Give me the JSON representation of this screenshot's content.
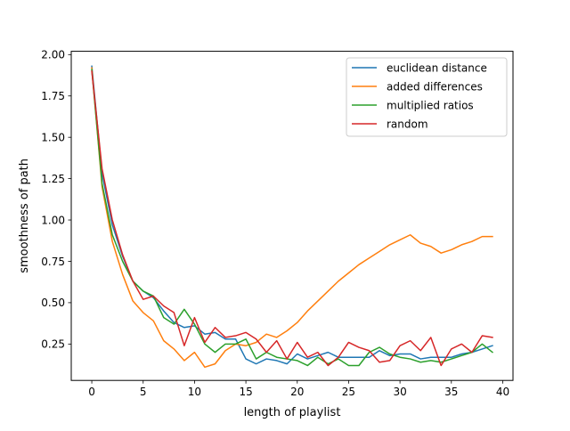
{
  "chart_data": {
    "type": "line",
    "title": "",
    "xlabel": "length of playlist",
    "ylabel": "smoothness of path",
    "xlim": [
      -2,
      41
    ],
    "ylim": [
      0.03,
      2.02
    ],
    "xticks": [
      0,
      5,
      10,
      15,
      20,
      25,
      30,
      35,
      40
    ],
    "xtick_labels": [
      "0",
      "5",
      "10",
      "15",
      "20",
      "25",
      "30",
      "35",
      "40"
    ],
    "yticks": [
      0.25,
      0.5,
      0.75,
      1.0,
      1.25,
      1.5,
      1.75,
      2.0
    ],
    "ytick_labels": [
      "0.25",
      "0.50",
      "0.75",
      "1.00",
      "1.25",
      "1.50",
      "1.75",
      "2.00"
    ],
    "grid": false,
    "legend_position": "top-right",
    "x": [
      0,
      1,
      2,
      3,
      4,
      5,
      6,
      7,
      8,
      9,
      10,
      11,
      12,
      13,
      14,
      15,
      16,
      17,
      18,
      19,
      20,
      21,
      22,
      23,
      24,
      25,
      26,
      27,
      28,
      29,
      30,
      31,
      32,
      33,
      34,
      35,
      36,
      37,
      38,
      39
    ],
    "series": [
      {
        "name": "euclidean distance",
        "color": "#1f77b4",
        "values": [
          1.93,
          1.28,
          0.97,
          0.78,
          0.63,
          0.57,
          0.53,
          0.45,
          0.38,
          0.35,
          0.36,
          0.31,
          0.32,
          0.28,
          0.28,
          0.16,
          0.13,
          0.16,
          0.15,
          0.13,
          0.19,
          0.16,
          0.18,
          0.2,
          0.17,
          0.17,
          0.17,
          0.17,
          0.21,
          0.18,
          0.19,
          0.19,
          0.16,
          0.17,
          0.17,
          0.17,
          0.19,
          0.2,
          0.22,
          0.24
        ]
      },
      {
        "name": "added differences",
        "color": "#ff7f0e",
        "values": [
          1.92,
          1.2,
          0.87,
          0.67,
          0.51,
          0.44,
          0.39,
          0.27,
          0.22,
          0.15,
          0.2,
          0.11,
          0.13,
          0.21,
          0.25,
          0.24,
          0.26,
          0.31,
          0.29,
          0.33,
          0.38,
          0.45,
          0.51,
          0.57,
          0.63,
          0.68,
          0.73,
          0.77,
          0.81,
          0.85,
          0.88,
          0.91,
          0.86,
          0.84,
          0.8,
          0.82,
          0.85,
          0.87,
          0.9,
          0.9
        ]
      },
      {
        "name": "multiplied ratios",
        "color": "#2ca02c",
        "values": [
          1.91,
          1.22,
          0.91,
          0.75,
          0.63,
          0.57,
          0.54,
          0.41,
          0.37,
          0.46,
          0.37,
          0.25,
          0.2,
          0.25,
          0.25,
          0.28,
          0.16,
          0.2,
          0.17,
          0.16,
          0.15,
          0.12,
          0.17,
          0.13,
          0.16,
          0.12,
          0.12,
          0.2,
          0.23,
          0.19,
          0.17,
          0.16,
          0.14,
          0.15,
          0.14,
          0.16,
          0.18,
          0.2,
          0.25,
          0.2
        ]
      },
      {
        "name": "random",
        "color": "#d62728",
        "values": [
          1.9,
          1.31,
          1.0,
          0.79,
          0.63,
          0.52,
          0.54,
          0.48,
          0.44,
          0.24,
          0.41,
          0.26,
          0.35,
          0.29,
          0.3,
          0.32,
          0.28,
          0.2,
          0.27,
          0.16,
          0.26,
          0.17,
          0.2,
          0.12,
          0.17,
          0.26,
          0.23,
          0.21,
          0.14,
          0.15,
          0.24,
          0.27,
          0.21,
          0.29,
          0.12,
          0.22,
          0.25,
          0.2,
          0.3,
          0.29
        ]
      }
    ]
  }
}
